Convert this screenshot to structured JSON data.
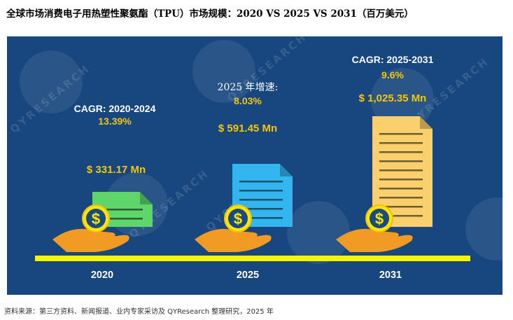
{
  "title": "全球市场消费电子用热塑性聚氨酯（TPU）市场规模：2020 VS 2025 VS 2031（百万美元）",
  "source": "资料来源：第三方资料、新闻报道、业内专家采访及 QYResearch 整理研究，2025 年",
  "watermark": "QYRESEARCH",
  "colors": {
    "panel": "#17477e",
    "accent": "#f5c600",
    "floor": "#f5f500",
    "doc2020": "#5ed66a",
    "doc2025": "#33b5f0",
    "doc2031": "#f9d06d",
    "hand": "#f29b24",
    "coin": "#ffe600"
  },
  "chart_data": {
    "type": "bar",
    "title": "全球市场消费电子用热塑性聚氨酯（TPU）市场规模：2020 VS 2025 VS 2031（百万美元）",
    "unit": "百万美元",
    "categories": [
      "2020",
      "2025",
      "2031"
    ],
    "values": [
      331.17,
      591.45,
      1025.35
    ],
    "value_labels": [
      "$ 331.17 Mn",
      "$ 591.45 Mn",
      "$ 1,025.35 Mn"
    ],
    "annotations": [
      {
        "label": "CAGR: 2020-2024",
        "value": "13.39%"
      },
      {
        "label": "2025 年增速:",
        "value": "8.03%"
      },
      {
        "label": "CAGR: 2025-2031",
        "value": "9.6%"
      }
    ]
  }
}
